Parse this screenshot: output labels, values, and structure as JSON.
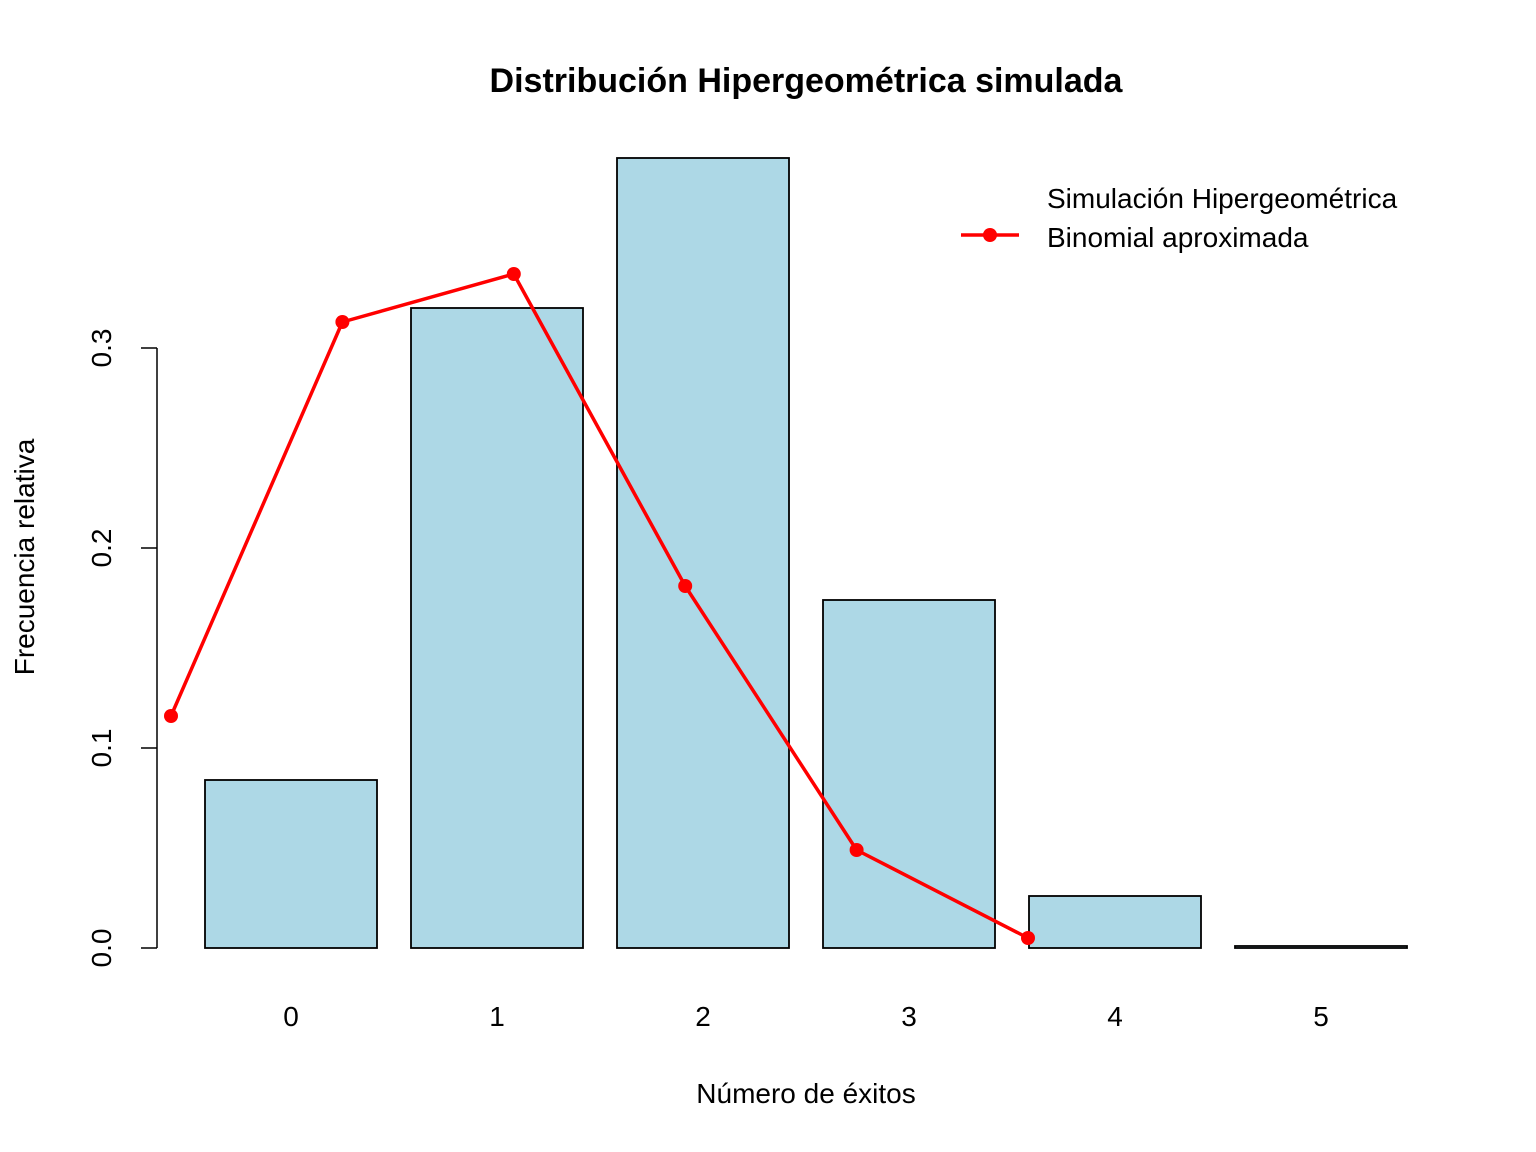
{
  "chart_data": {
    "type": "bar",
    "title": "Distribución Hipergeométrica simulada",
    "xlabel": "Número de éxitos",
    "ylabel": "Frecuencia relativa",
    "categories": [
      "0",
      "1",
      "2",
      "3",
      "4",
      "5"
    ],
    "ylim": [
      0,
      0.4
    ],
    "yticks": [
      "0.0",
      "0.1",
      "0.2",
      "0.3"
    ],
    "yticks_values": [
      0,
      0.1,
      0.2,
      0.3
    ],
    "grid": false,
    "legend_position": "top-right",
    "series": [
      {
        "name": "Simulación Hipergeométrica",
        "kind": "bar",
        "color": "#ADD8E6",
        "values": [
          0.084,
          0.32,
          0.395,
          0.174,
          0.026,
          0.001
        ]
      },
      {
        "name": "Binomial aproximada",
        "kind": "line",
        "color": "#FF0000",
        "x": [
          0,
          1,
          2,
          3,
          4,
          5
        ],
        "values": [
          0.116,
          0.313,
          0.337,
          0.181,
          0.049,
          0.005
        ]
      }
    ]
  }
}
